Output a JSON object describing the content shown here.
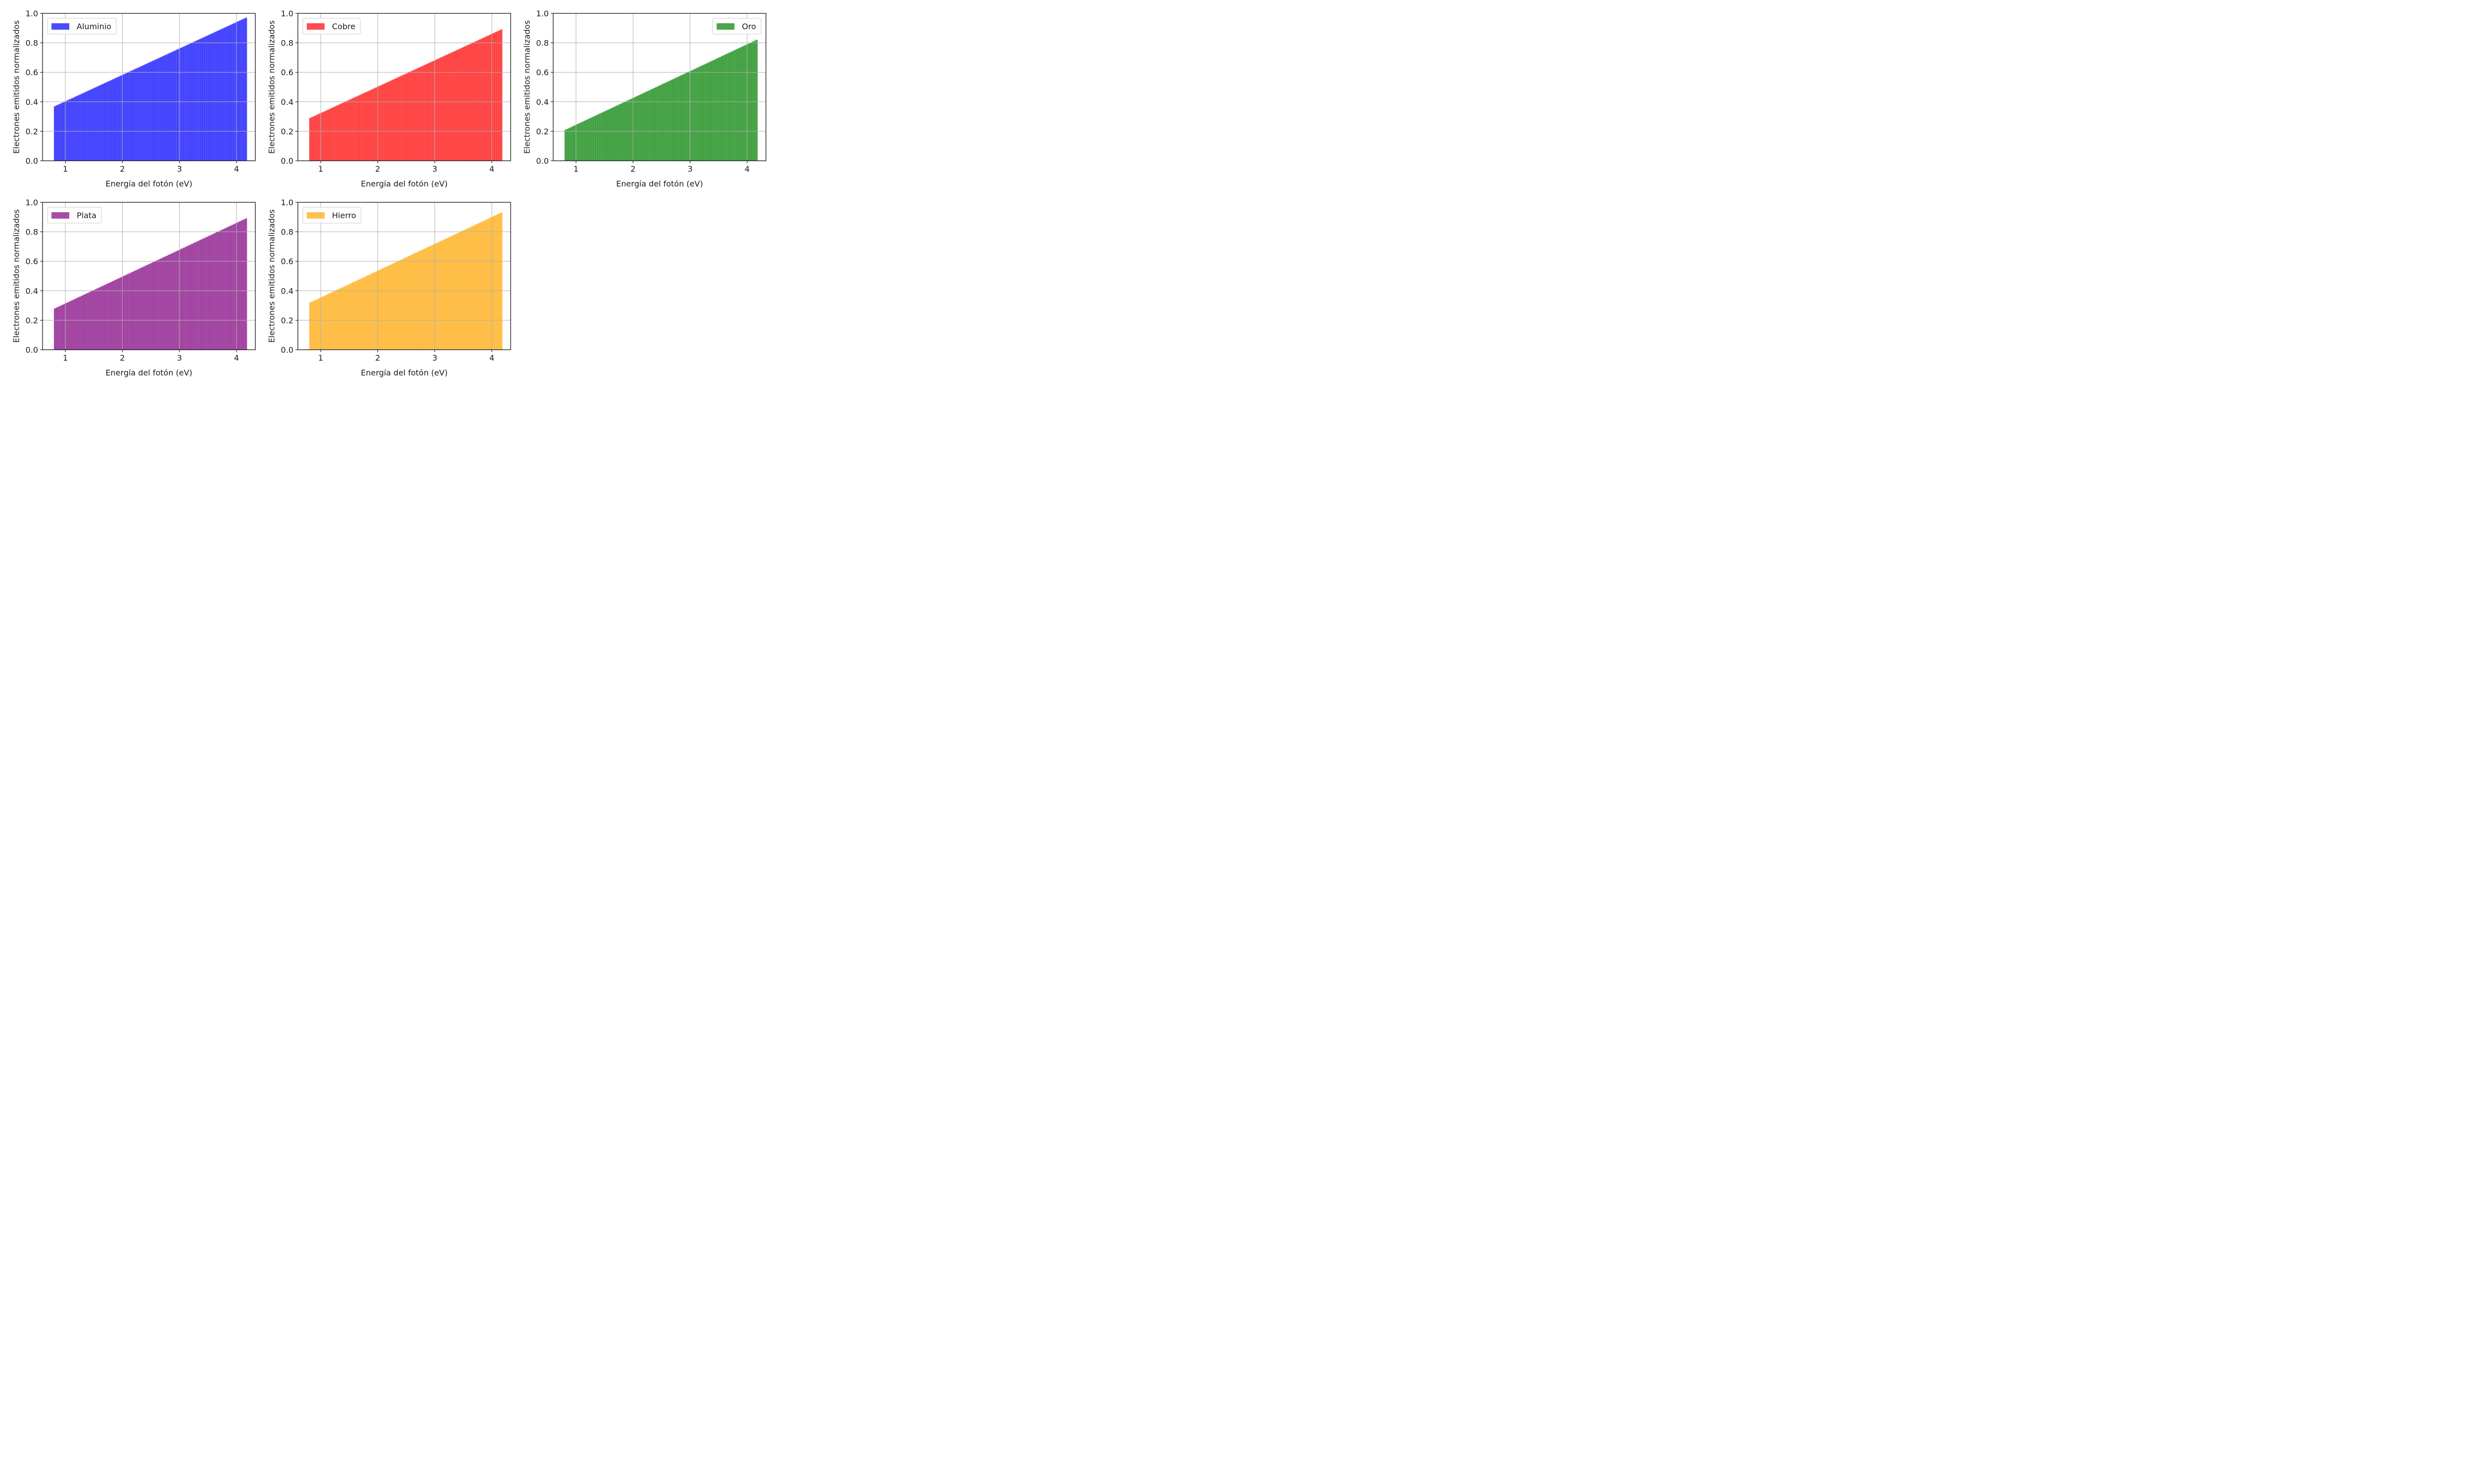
{
  "chart_data": [
    {
      "type": "bar",
      "title": "",
      "legend": "Aluminio",
      "legend_placement": "top-left",
      "color": "#0000ff",
      "xlabel": "Energía del fotón (eV)",
      "ylabel": "Electrones emitidos normalizados",
      "x_range": [
        0.8,
        4.15
      ],
      "y_start": 0.37,
      "y_end": 0.97,
      "bar_count": 100,
      "xlim": [
        0.6,
        4.33
      ],
      "ylim": [
        0.0,
        1.0
      ],
      "xticks": [
        "1",
        "2",
        "3",
        "4"
      ],
      "yticks": [
        "0.0",
        "0.2",
        "0.4",
        "0.6",
        "0.8",
        "1.0"
      ],
      "grid": true
    },
    {
      "type": "bar",
      "title": "",
      "legend": "Cobre",
      "legend_placement": "top-left",
      "color": "#ff0000",
      "xlabel": "Energía del fotón (eV)",
      "ylabel": "Electrones emitidos normalizados",
      "x_range": [
        0.8,
        4.15
      ],
      "y_start": 0.29,
      "y_end": 0.89,
      "bar_count": 100,
      "xlim": [
        0.6,
        4.33
      ],
      "ylim": [
        0.0,
        1.0
      ],
      "xticks": [
        "1",
        "2",
        "3",
        "4"
      ],
      "yticks": [
        "0.0",
        "0.2",
        "0.4",
        "0.6",
        "0.8",
        "1.0"
      ],
      "grid": true
    },
    {
      "type": "bar",
      "title": "",
      "legend": "Oro",
      "legend_placement": "top-right",
      "color": "#008000",
      "xlabel": "Energía del fotón (eV)",
      "ylabel": "Electrones emitidos normalizados",
      "x_range": [
        0.8,
        4.15
      ],
      "y_start": 0.21,
      "y_end": 0.82,
      "bar_count": 100,
      "xlim": [
        0.6,
        4.33
      ],
      "ylim": [
        0.0,
        1.0
      ],
      "xticks": [
        "1",
        "2",
        "3",
        "4"
      ],
      "yticks": [
        "0.0",
        "0.2",
        "0.4",
        "0.6",
        "0.8",
        "1.0"
      ],
      "grid": true
    },
    {
      "type": "bar",
      "title": "",
      "legend": "Plata",
      "legend_placement": "top-left",
      "color": "#800080",
      "xlabel": "Energía del fotón (eV)",
      "ylabel": "Electrones emitidos normalizados",
      "x_range": [
        0.8,
        4.15
      ],
      "y_start": 0.28,
      "y_end": 0.89,
      "bar_count": 100,
      "xlim": [
        0.6,
        4.33
      ],
      "ylim": [
        0.0,
        1.0
      ],
      "xticks": [
        "1",
        "2",
        "3",
        "4"
      ],
      "yticks": [
        "0.0",
        "0.2",
        "0.4",
        "0.6",
        "0.8",
        "1.0"
      ],
      "grid": true
    },
    {
      "type": "bar",
      "title": "",
      "legend": "Hierro",
      "legend_placement": "top-left",
      "color": "#ffa500",
      "xlabel": "Energía del fotón (eV)",
      "ylabel": "Electrones emitidos normalizados",
      "x_range": [
        0.8,
        4.15
      ],
      "y_start": 0.32,
      "y_end": 0.93,
      "bar_count": 100,
      "xlim": [
        0.6,
        4.33
      ],
      "ylim": [
        0.0,
        1.0
      ],
      "xticks": [
        "1",
        "2",
        "3",
        "4"
      ],
      "yticks": [
        "0.0",
        "0.2",
        "0.4",
        "0.6",
        "0.8",
        "1.0"
      ],
      "grid": true
    }
  ]
}
